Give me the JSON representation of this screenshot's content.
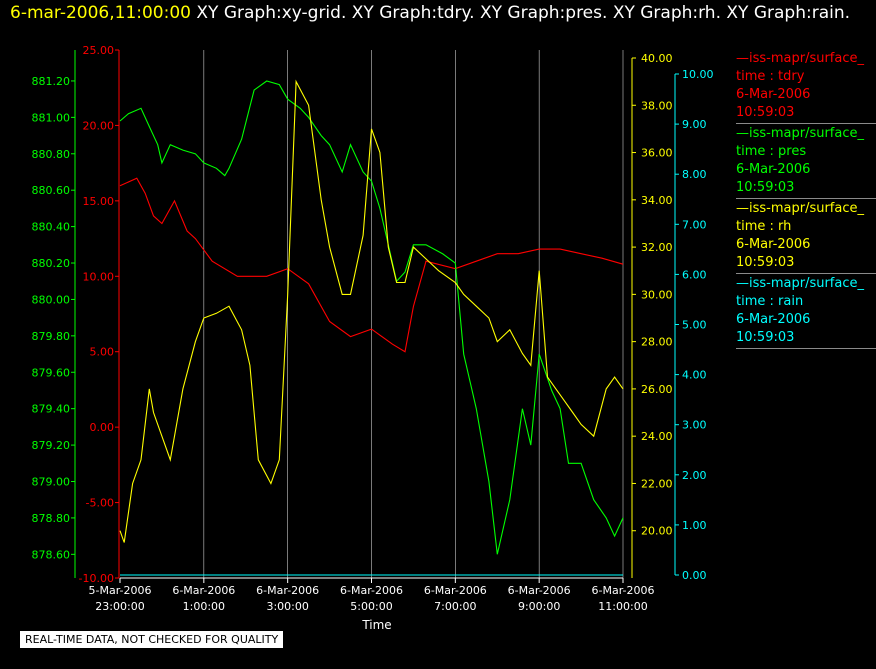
{
  "header": {
    "timestamp": "6-mar-2006,11:00:00",
    "graph_titles": [
      "XY Graph:xy-grid.",
      "XY Graph:tdry.",
      "XY Graph:pres.",
      "XY Graph:rh.",
      "XY Graph:rain."
    ]
  },
  "legend": [
    {
      "line1": "—iss-mapr/surface_",
      "line2": "time : tdry",
      "date": "6-Mar-2006",
      "time": "10:59:03",
      "color": "#ff0000"
    },
    {
      "line1": "—iss-mapr/surface_",
      "line2": "time : pres",
      "date": "6-Mar-2006",
      "time": "10:59:03",
      "color": "#00ff00"
    },
    {
      "line1": "—iss-mapr/surface_",
      "line2": "time : rh",
      "date": "6-Mar-2006",
      "time": "10:59:03",
      "color": "#ffff00"
    },
    {
      "line1": "—iss-mapr/surface_",
      "line2": "time : rain",
      "date": "6-Mar-2006",
      "time": "10:59:03",
      "color": "#00ffff"
    }
  ],
  "quality_note": "REAL-TIME DATA, NOT CHECKED FOR QUALITY",
  "colors": {
    "tdry": "#ff0000",
    "pres": "#00ff00",
    "rh": "#ffff00",
    "rain": "#00ffff",
    "grid": "#ffffff"
  },
  "chart_data": {
    "type": "line",
    "xlabel": "Time",
    "x_tick_labels": [
      {
        "date": "5-Mar-2006",
        "time": "23:00:00"
      },
      {
        "date": "6-Mar-2006",
        "time": "1:00:00"
      },
      {
        "date": "6-Mar-2006",
        "time": "3:00:00"
      },
      {
        "date": "6-Mar-2006",
        "time": "5:00:00"
      },
      {
        "date": "6-Mar-2006",
        "time": "7:00:00"
      },
      {
        "date": "6-Mar-2006",
        "time": "9:00:00"
      },
      {
        "date": "6-Mar-2006",
        "time": "11:00:00"
      }
    ],
    "xlim_hours": [
      -1,
      11
    ],
    "grid": "vertical",
    "axes": {
      "tdry": {
        "side": "left",
        "range": [
          -10,
          25
        ],
        "ticks": [
          "25.00",
          "20.00",
          "15.00",
          "10.00",
          "5.00",
          "0.00",
          "-5.00",
          "-10.00"
        ]
      },
      "pres": {
        "side": "left",
        "range": [
          878.47,
          881.37
        ],
        "ticks": [
          "881.20",
          "881.00",
          "880.80",
          "880.60",
          "880.40",
          "880.20",
          "880.00",
          "879.80",
          "879.60",
          "879.40",
          "879.20",
          "879.00",
          "878.80",
          "878.60"
        ]
      },
      "rh": {
        "side": "right",
        "range": [
          18,
          40
        ],
        "ticks": [
          "40.00",
          "38.00",
          "36.00",
          "34.00",
          "32.00",
          "30.00",
          "28.00",
          "26.00",
          "24.00",
          "22.00",
          "20.00"
        ]
      },
      "rain": {
        "side": "right",
        "range": [
          0,
          10
        ],
        "ticks": [
          "10.00",
          "9.00",
          "8.00",
          "7.00",
          "6.00",
          "5.00",
          "4.00",
          "3.00",
          "2.00",
          "1.00",
          "0.00"
        ]
      }
    },
    "series": [
      {
        "key": "tdry",
        "x_hours": [
          -1,
          -0.6,
          -0.4,
          -0.2,
          0,
          0.3,
          0.6,
          0.8,
          1.2,
          1.8,
          2.5,
          3,
          3.5,
          4,
          4.5,
          5,
          5.5,
          5.8,
          6,
          6.3,
          7,
          7.5,
          8,
          8.5,
          9,
          9.5,
          10,
          10.5,
          11
        ],
        "values": [
          16,
          16.5,
          15.5,
          14,
          13.5,
          15,
          13,
          12.5,
          11,
          10,
          10,
          10.5,
          9.5,
          7,
          6,
          6.5,
          5.5,
          5,
          8,
          11,
          10.5,
          11,
          11.5,
          11.5,
          11.8,
          11.8,
          11.5,
          11.2,
          10.8
        ]
      },
      {
        "key": "pres",
        "x_hours": [
          -1,
          -0.8,
          -0.5,
          -0.3,
          -0.1,
          0,
          0.2,
          0.5,
          0.8,
          1,
          1.3,
          1.5,
          1.6,
          1.9,
          2.2,
          2.5,
          2.8,
          3,
          3.3,
          3.5,
          3.8,
          4,
          4.3,
          4.5,
          4.8,
          5,
          5.2,
          5.4,
          5.6,
          5.8,
          6,
          6.3,
          6.7,
          7,
          7.2,
          7.5,
          7.8,
          8,
          8.3,
          8.6,
          8.8,
          9,
          9.3,
          9.5,
          9.7,
          10,
          10.3,
          10.6,
          10.8,
          11
        ],
        "values": [
          880.98,
          881.02,
          881.05,
          880.95,
          880.85,
          880.75,
          880.85,
          880.82,
          880.8,
          880.75,
          880.72,
          880.68,
          880.72,
          880.88,
          881.15,
          881.2,
          881.18,
          881.1,
          881.05,
          881.0,
          880.9,
          880.85,
          880.7,
          880.85,
          880.7,
          880.65,
          880.5,
          880.3,
          880.1,
          880.15,
          880.3,
          880.3,
          880.25,
          880.2,
          879.7,
          879.4,
          879.0,
          878.6,
          878.9,
          879.4,
          879.2,
          879.7,
          879.5,
          879.4,
          879.1,
          879.1,
          878.9,
          878.8,
          878.7,
          878.8
        ]
      },
      {
        "key": "rh",
        "x_hours": [
          -1,
          -0.9,
          -0.7,
          -0.5,
          -0.3,
          -0.2,
          0,
          0.2,
          0.5,
          0.8,
          1,
          1.3,
          1.6,
          1.9,
          2.1,
          2.3,
          2.6,
          2.8,
          3,
          3.2,
          3.5,
          3.8,
          4,
          4.3,
          4.5,
          4.8,
          5,
          5.2,
          5.4,
          5.6,
          5.8,
          6,
          6.3,
          6.6,
          7,
          7.2,
          7.5,
          7.8,
          8,
          8.3,
          8.6,
          8.8,
          9,
          9.2,
          9.4,
          9.6,
          9.8,
          10,
          10.3,
          10.6,
          10.8,
          11
        ],
        "values": [
          20,
          19.5,
          22,
          23,
          26,
          25,
          24,
          23,
          26,
          28,
          29,
          29.2,
          29.5,
          28.5,
          27,
          23,
          22,
          23,
          30,
          39,
          38,
          34,
          32,
          30,
          30,
          32.5,
          37,
          36,
          32,
          30.5,
          30.5,
          32,
          31.5,
          31,
          30.5,
          30,
          29.5,
          29,
          28,
          28.5,
          27.5,
          27,
          31,
          26.5,
          26,
          25.5,
          25,
          24.5,
          24,
          26,
          26.5,
          26
        ]
      },
      {
        "key": "rain",
        "x_hours": [
          -1,
          11
        ],
        "values": [
          0,
          0
        ]
      }
    ]
  }
}
